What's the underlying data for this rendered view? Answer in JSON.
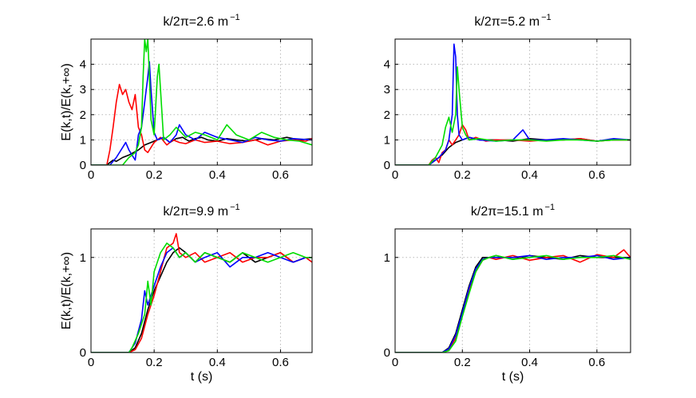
{
  "chart_data": [
    {
      "type": "line",
      "title": "k/2π=2.6 m",
      "title_superscript": "−1",
      "xlabel": "",
      "ylabel": "E(k,t)/E(k,+∞)",
      "xlim": [
        0,
        0.7
      ],
      "ylim": [
        0,
        5
      ],
      "xticks": [
        0,
        0.2,
        0.4,
        0.6
      ],
      "xtick_labels": [
        "0",
        "0.2",
        "0.4",
        "0.6"
      ],
      "yticks": [
        0,
        1,
        2,
        3,
        4
      ],
      "ytick_labels": [
        "0",
        "1",
        "2",
        "3",
        "4"
      ],
      "grid": true,
      "series": [
        {
          "name": "black",
          "color": "#000000",
          "x": [
            0,
            0.05,
            0.06,
            0.07,
            0.08,
            0.1,
            0.12,
            0.15,
            0.17,
            0.19,
            0.21,
            0.23,
            0.25,
            0.27,
            0.29,
            0.31,
            0.33,
            0.35,
            0.37,
            0.4,
            0.43,
            0.46,
            0.5,
            0.54,
            0.58,
            0.62,
            0.66,
            0.7
          ],
          "y": [
            0,
            0,
            0.1,
            0.2,
            0.15,
            0.3,
            0.4,
            0.6,
            0.8,
            0.9,
            1.0,
            1.1,
            0.9,
            1.05,
            1.1,
            0.95,
            1.05,
            1.1,
            1.0,
            0.95,
            1.05,
            1.0,
            0.95,
            1.05,
            1.0,
            1.1,
            1.0,
            1.05
          ]
        },
        {
          "name": "red",
          "color": "#ff0000",
          "x": [
            0,
            0.05,
            0.06,
            0.07,
            0.08,
            0.09,
            0.1,
            0.11,
            0.12,
            0.13,
            0.14,
            0.15,
            0.16,
            0.17,
            0.18,
            0.2,
            0.22,
            0.24,
            0.26,
            0.28,
            0.3,
            0.33,
            0.36,
            0.4,
            0.44,
            0.48,
            0.52,
            0.56,
            0.6,
            0.64,
            0.68,
            0.7
          ],
          "y": [
            0,
            0,
            0.6,
            1.5,
            2.5,
            3.2,
            2.8,
            3.0,
            2.5,
            2.2,
            2.8,
            1.5,
            1.2,
            0.6,
            0.5,
            0.9,
            1.1,
            0.8,
            1.0,
            0.9,
            0.85,
            1.0,
            0.9,
            0.95,
            0.85,
            0.9,
            1.0,
            0.8,
            0.95,
            1.0,
            0.95,
            1.05
          ]
        },
        {
          "name": "blue",
          "color": "#0000ff",
          "x": [
            0,
            0.06,
            0.08,
            0.1,
            0.11,
            0.12,
            0.13,
            0.14,
            0.15,
            0.16,
            0.17,
            0.18,
            0.185,
            0.19,
            0.2,
            0.21,
            0.23,
            0.25,
            0.27,
            0.28,
            0.3,
            0.33,
            0.36,
            0.4,
            0.44,
            0.48,
            0.52,
            0.56,
            0.6,
            0.64,
            0.7
          ],
          "y": [
            0,
            0,
            0.3,
            0.7,
            0.9,
            0.6,
            0.4,
            0.2,
            1.2,
            1.5,
            2.5,
            3.5,
            4.1,
            3.0,
            1.3,
            1.0,
            1.1,
            0.9,
            1.2,
            1.6,
            1.2,
            1.0,
            1.3,
            1.1,
            1.0,
            0.9,
            1.1,
            1.0,
            0.95,
            1.05,
            1.0
          ]
        },
        {
          "name": "green",
          "color": "#00dd00",
          "x": [
            0,
            0.1,
            0.12,
            0.14,
            0.15,
            0.16,
            0.165,
            0.17,
            0.175,
            0.18,
            0.185,
            0.19,
            0.2,
            0.21,
            0.215,
            0.22,
            0.23,
            0.25,
            0.27,
            0.3,
            0.33,
            0.36,
            0.4,
            0.43,
            0.46,
            0.5,
            0.54,
            0.58,
            0.62,
            0.66,
            0.7
          ],
          "y": [
            0,
            0,
            0.3,
            0.5,
            0.8,
            1.5,
            3.5,
            5.0,
            4.5,
            5.0,
            3.5,
            1.8,
            1.2,
            3.5,
            4.0,
            3.0,
            1.0,
            1.2,
            1.5,
            1.1,
            1.3,
            1.2,
            1.0,
            1.6,
            1.2,
            1.0,
            1.3,
            1.1,
            1.0,
            0.95,
            0.8
          ]
        }
      ]
    },
    {
      "type": "line",
      "title": "k/2π=5.2 m",
      "title_superscript": "−1",
      "xlabel": "",
      "ylabel": "",
      "xlim": [
        0,
        0.7
      ],
      "ylim": [
        0,
        5
      ],
      "xticks": [
        0,
        0.2,
        0.4,
        0.6
      ],
      "xtick_labels": [
        "0",
        "0.2",
        "0.4",
        "0.6"
      ],
      "yticks": [
        0,
        1,
        2,
        3,
        4
      ],
      "ytick_labels": [
        "0",
        "1",
        "2",
        "3",
        "4"
      ],
      "grid": true,
      "series": [
        {
          "name": "black",
          "color": "#000000",
          "x": [
            0,
            0.1,
            0.12,
            0.14,
            0.16,
            0.18,
            0.2,
            0.22,
            0.25,
            0.3,
            0.35,
            0.4,
            0.45,
            0.5,
            0.55,
            0.6,
            0.65,
            0.7
          ],
          "y": [
            0,
            0,
            0.2,
            0.4,
            0.7,
            0.9,
            1.0,
            1.1,
            1.0,
            1.0,
            0.95,
            1.05,
            1.0,
            1.0,
            1.05,
            0.95,
            1.0,
            1.0
          ]
        },
        {
          "name": "red",
          "color": "#ff0000",
          "x": [
            0,
            0.1,
            0.11,
            0.12,
            0.13,
            0.14,
            0.15,
            0.16,
            0.17,
            0.18,
            0.19,
            0.2,
            0.21,
            0.22,
            0.24,
            0.27,
            0.3,
            0.35,
            0.4,
            0.45,
            0.5,
            0.55,
            0.6,
            0.65,
            0.7
          ],
          "y": [
            0,
            0,
            0.2,
            0.3,
            0.1,
            0.5,
            0.6,
            1.0,
            0.8,
            1.0,
            1.2,
            1.6,
            1.4,
            1.0,
            1.1,
            0.95,
            1.0,
            1.0,
            0.95,
            1.0,
            1.0,
            1.05,
            0.95,
            1.0,
            1.0
          ]
        },
        {
          "name": "blue",
          "color": "#0000ff",
          "x": [
            0,
            0.1,
            0.13,
            0.15,
            0.16,
            0.17,
            0.175,
            0.18,
            0.185,
            0.19,
            0.2,
            0.22,
            0.25,
            0.3,
            0.35,
            0.38,
            0.4,
            0.45,
            0.5,
            0.55,
            0.6,
            0.65,
            0.7
          ],
          "y": [
            0,
            0,
            0.3,
            0.6,
            1.0,
            2.0,
            4.8,
            4.3,
            2.0,
            1.2,
            1.0,
            1.1,
            1.0,
            0.95,
            1.0,
            1.4,
            1.0,
            1.0,
            1.05,
            1.0,
            0.95,
            1.05,
            1.0
          ]
        },
        {
          "name": "green",
          "color": "#00dd00",
          "x": [
            0,
            0.1,
            0.12,
            0.14,
            0.15,
            0.16,
            0.17,
            0.18,
            0.185,
            0.19,
            0.2,
            0.21,
            0.22,
            0.25,
            0.3,
            0.35,
            0.4,
            0.45,
            0.5,
            0.55,
            0.6,
            0.65,
            0.7
          ],
          "y": [
            0,
            0,
            0.3,
            0.8,
            1.5,
            1.9,
            1.3,
            2.0,
            3.9,
            3.0,
            1.5,
            1.2,
            1.0,
            1.05,
            0.95,
            1.0,
            1.0,
            0.95,
            1.0,
            1.0,
            0.95,
            1.0,
            1.0
          ]
        }
      ]
    },
    {
      "type": "line",
      "title": "k/2π=9.9 m",
      "title_superscript": "−1",
      "xlabel": "t (s)",
      "ylabel": "E(k,t)/E(k,+∞)",
      "xlim": [
        0,
        0.7
      ],
      "ylim": [
        0,
        1.3
      ],
      "xticks": [
        0,
        0.2,
        0.4,
        0.6
      ],
      "xtick_labels": [
        "0",
        "0.2",
        "0.4",
        "0.6"
      ],
      "yticks": [
        0,
        1
      ],
      "ytick_labels": [
        "0",
        "1"
      ],
      "grid": true,
      "series": [
        {
          "name": "black",
          "color": "#000000",
          "x": [
            0,
            0.12,
            0.14,
            0.16,
            0.18,
            0.2,
            0.22,
            0.24,
            0.26,
            0.28,
            0.3,
            0.33,
            0.36,
            0.4,
            0.44,
            0.48,
            0.52,
            0.56,
            0.6,
            0.64,
            0.68,
            0.7
          ],
          "y": [
            0,
            0,
            0.05,
            0.2,
            0.45,
            0.65,
            0.8,
            0.95,
            1.05,
            1.1,
            1.05,
            0.95,
            1.05,
            1.0,
            0.95,
            1.05,
            0.95,
            1.0,
            1.05,
            0.95,
            1.0,
            1.0
          ]
        },
        {
          "name": "red",
          "color": "#ff0000",
          "x": [
            0,
            0.12,
            0.14,
            0.16,
            0.18,
            0.2,
            0.22,
            0.24,
            0.26,
            0.27,
            0.28,
            0.3,
            0.33,
            0.36,
            0.4,
            0.44,
            0.48,
            0.52,
            0.56,
            0.6,
            0.64,
            0.68,
            0.7
          ],
          "y": [
            0,
            0,
            0.03,
            0.15,
            0.4,
            0.6,
            0.85,
            1.1,
            1.15,
            1.25,
            1.05,
            1.0,
            1.05,
            0.95,
            1.0,
            1.05,
            0.95,
            1.0,
            1.0,
            1.05,
            0.95,
            1.0,
            0.95
          ]
        },
        {
          "name": "blue",
          "color": "#0000ff",
          "x": [
            0,
            0.12,
            0.14,
            0.16,
            0.17,
            0.18,
            0.2,
            0.22,
            0.24,
            0.26,
            0.28,
            0.3,
            0.33,
            0.36,
            0.4,
            0.44,
            0.48,
            0.52,
            0.56,
            0.6,
            0.64,
            0.68,
            0.7
          ],
          "y": [
            0,
            0,
            0.1,
            0.35,
            0.65,
            0.5,
            0.7,
            0.9,
            1.05,
            1.1,
            1.0,
            1.05,
            0.95,
            1.0,
            1.05,
            0.9,
            1.0,
            1.0,
            1.05,
            1.0,
            0.95,
            1.0,
            1.0
          ]
        },
        {
          "name": "green",
          "color": "#00dd00",
          "x": [
            0,
            0.12,
            0.13,
            0.15,
            0.17,
            0.18,
            0.19,
            0.2,
            0.22,
            0.24,
            0.26,
            0.28,
            0.3,
            0.33,
            0.36,
            0.4,
            0.44,
            0.48,
            0.52,
            0.56,
            0.6,
            0.64,
            0.68,
            0.7
          ],
          "y": [
            0,
            0,
            0.05,
            0.2,
            0.4,
            0.75,
            0.5,
            0.85,
            1.05,
            1.15,
            1.1,
            1.0,
            1.05,
            0.95,
            1.05,
            1.0,
            0.95,
            1.05,
            1.0,
            0.95,
            1.0,
            1.05,
            1.0,
            1.0
          ]
        }
      ]
    },
    {
      "type": "line",
      "title": "k/2π=15.1 m",
      "title_superscript": "−1",
      "xlabel": "t (s)",
      "ylabel": "",
      "xlim": [
        0,
        0.7
      ],
      "ylim": [
        0,
        1.3
      ],
      "xticks": [
        0,
        0.2,
        0.4,
        0.6
      ],
      "xtick_labels": [
        "0",
        "0.2",
        "0.4",
        "0.6"
      ],
      "yticks": [
        0,
        1
      ],
      "ytick_labels": [
        "0",
        "1"
      ],
      "grid": true,
      "series": [
        {
          "name": "black",
          "color": "#000000",
          "x": [
            0,
            0.14,
            0.16,
            0.18,
            0.2,
            0.22,
            0.24,
            0.26,
            0.28,
            0.3,
            0.35,
            0.4,
            0.45,
            0.5,
            0.55,
            0.6,
            0.65,
            0.7
          ],
          "y": [
            0,
            0,
            0.05,
            0.2,
            0.45,
            0.7,
            0.9,
            1.0,
            1.0,
            1.02,
            0.98,
            1.02,
            1.0,
            0.98,
            1.02,
            1.0,
            1.0,
            1.0
          ]
        },
        {
          "name": "red",
          "color": "#ff0000",
          "x": [
            0,
            0.14,
            0.16,
            0.18,
            0.2,
            0.22,
            0.24,
            0.26,
            0.28,
            0.3,
            0.35,
            0.4,
            0.45,
            0.5,
            0.55,
            0.6,
            0.65,
            0.68,
            0.7
          ],
          "y": [
            0,
            0,
            0.03,
            0.15,
            0.4,
            0.65,
            0.85,
            0.97,
            1.0,
            0.98,
            1.02,
            0.97,
            1.0,
            1.02,
            0.95,
            1.03,
            1.0,
            1.08,
            1.0
          ]
        },
        {
          "name": "blue",
          "color": "#0000ff",
          "x": [
            0,
            0.14,
            0.16,
            0.18,
            0.2,
            0.22,
            0.24,
            0.26,
            0.28,
            0.3,
            0.35,
            0.4,
            0.45,
            0.5,
            0.55,
            0.6,
            0.65,
            0.7
          ],
          "y": [
            0,
            0,
            0.04,
            0.18,
            0.42,
            0.68,
            0.88,
            0.98,
            1.0,
            1.0,
            1.0,
            1.02,
            0.98,
            1.0,
            1.0,
            1.02,
            0.98,
            1.0
          ]
        },
        {
          "name": "green",
          "color": "#00dd00",
          "x": [
            0,
            0.14,
            0.16,
            0.18,
            0.2,
            0.22,
            0.24,
            0.26,
            0.28,
            0.3,
            0.35,
            0.4,
            0.45,
            0.5,
            0.55,
            0.6,
            0.65,
            0.7
          ],
          "y": [
            0,
            0,
            0.02,
            0.12,
            0.38,
            0.62,
            0.85,
            0.97,
            1.0,
            1.02,
            0.98,
            1.0,
            1.02,
            0.98,
            1.0,
            1.0,
            1.02,
            0.98
          ]
        }
      ]
    }
  ]
}
